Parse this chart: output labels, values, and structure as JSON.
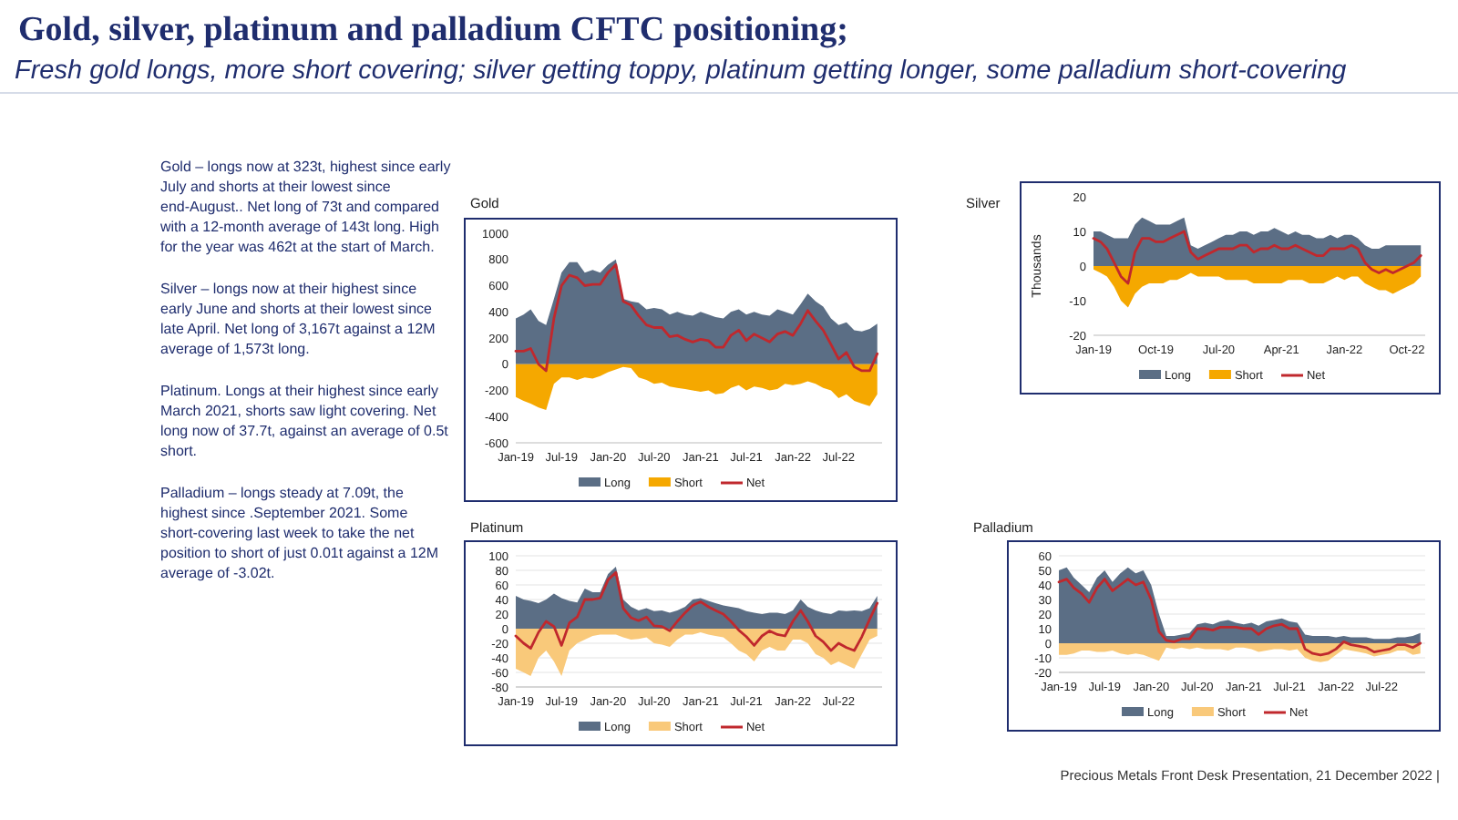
{
  "chart_data": [
    {
      "type": "other",
      "title": "Gold, silver, platinum and palladium CFTC positioning;",
      "subtitle": "Fresh gold longs, more short covering; silver getting toppy, platinum getting longer, some  palladium short-covering",
      "annotations": [
        "Gold – longs now at 323t, highest since early July and shorts at their lowest since end-August..  Net long of 73t and compared with a 12-month average of 143t long. High for the year was 462t at the start of March.",
        "Silver – longs now at their highest since early June and shorts at their lowest since late April. Net long of 3,167t against a 12M average of 1,573t long.",
        "Platinum. Longs at their highest since early March 2021, shorts saw light covering.  Net long now of 37.7t, against an average of 0.5t short.",
        "Palladium – longs steady at 7.09t, the highest since .September 2021. Some short-covering last week to take the net position to short of just 0.01t against a 12M average of -3.02t.",
        "Precious Metals Front Desk Presentation, 21 December 2022 |"
      ]
    },
    {
      "type": "area",
      "title": "Gold",
      "legend": "bottom",
      "ylim": [
        -600,
        1000
      ],
      "yticks": [
        -600,
        -400,
        -200,
        0,
        200,
        400,
        600,
        800,
        1000
      ],
      "xlim": [
        "2019-01-01",
        "2022-12-20"
      ],
      "xticks": [
        {
          "value": "2019-01-01",
          "label": "Jan-19"
        },
        {
          "value": "2019-07-01",
          "label": "Jul-19"
        },
        {
          "value": "2020-01-01",
          "label": "Jan-20"
        },
        {
          "value": "2020-07-01",
          "label": "Jul-20"
        },
        {
          "value": "2021-01-01",
          "label": "Jan-21"
        },
        {
          "value": "2021-07-01",
          "label": "Jul-21"
        },
        {
          "value": "2022-01-01",
          "label": "Jan-22"
        },
        {
          "value": "2022-07-01",
          "label": "Jul-22"
        }
      ],
      "x": [
        "2019-01",
        "2019-02",
        "2019-03",
        "2019-04",
        "2019-05",
        "2019-06",
        "2019-07",
        "2019-08",
        "2019-09",
        "2019-10",
        "2019-11",
        "2019-12",
        "2020-01",
        "2020-02",
        "2020-03",
        "2020-04",
        "2020-05",
        "2020-06",
        "2020-07",
        "2020-08",
        "2020-09",
        "2020-10",
        "2020-11",
        "2020-12",
        "2021-01",
        "2021-02",
        "2021-03",
        "2021-04",
        "2021-05",
        "2021-06",
        "2021-07",
        "2021-08",
        "2021-09",
        "2021-10",
        "2021-11",
        "2021-12",
        "2022-01",
        "2022-02",
        "2022-03",
        "2022-04",
        "2022-05",
        "2022-06",
        "2022-07",
        "2022-08",
        "2022-09",
        "2022-10",
        "2022-11",
        "2022-12"
      ],
      "series": [
        {
          "name": "Long",
          "type": "area",
          "color": "#5b6e85",
          "values": [
            350,
            380,
            420,
            330,
            300,
            500,
            700,
            780,
            780,
            700,
            720,
            700,
            760,
            800,
            500,
            480,
            470,
            420,
            430,
            420,
            380,
            400,
            380,
            370,
            400,
            380,
            360,
            350,
            400,
            420,
            380,
            400,
            380,
            370,
            420,
            400,
            380,
            460,
            540,
            480,
            440,
            350,
            300,
            320,
            260,
            250,
            270,
            310
          ]
        },
        {
          "name": "Short",
          "type": "area",
          "color": "#f5a800",
          "values": [
            -250,
            -280,
            -300,
            -330,
            -350,
            -150,
            -100,
            -100,
            -120,
            -100,
            -110,
            -90,
            -60,
            -40,
            -20,
            -30,
            -100,
            -120,
            -150,
            -140,
            -170,
            -180,
            -190,
            -200,
            -210,
            -200,
            -230,
            -220,
            -180,
            -160,
            -200,
            -170,
            -180,
            -200,
            -190,
            -150,
            -160,
            -150,
            -130,
            -150,
            -180,
            -200,
            -260,
            -230,
            -280,
            -300,
            -320,
            -230
          ]
        },
        {
          "name": "Net",
          "type": "line",
          "color": "#c0282d",
          "values": [
            100,
            100,
            120,
            0,
            -50,
            350,
            600,
            680,
            660,
            600,
            610,
            610,
            700,
            760,
            480,
            450,
            370,
            300,
            280,
            280,
            210,
            220,
            190,
            170,
            190,
            180,
            130,
            130,
            220,
            260,
            180,
            230,
            200,
            170,
            230,
            250,
            220,
            310,
            410,
            330,
            260,
            150,
            40,
            90,
            -20,
            -50,
            -50,
            80
          ]
        }
      ]
    },
    {
      "type": "area",
      "title": "Silver",
      "ylabel": "Thousands",
      "legend": "bottom",
      "ylim": [
        -20,
        20
      ],
      "yticks": [
        -20,
        -10,
        0,
        10,
        20
      ],
      "xlim": [
        "2019-01-01",
        "2022-12-20"
      ],
      "xticks": [
        {
          "value": "2019-01-01",
          "label": "Jan-19"
        },
        {
          "value": "2019-10-01",
          "label": "Oct-19"
        },
        {
          "value": "2020-07-01",
          "label": "Jul-20"
        },
        {
          "value": "2021-04-01",
          "label": "Apr-21"
        },
        {
          "value": "2022-01-01",
          "label": "Jan-22"
        },
        {
          "value": "2022-10-01",
          "label": "Oct-22"
        }
      ],
      "x": [
        "2019-01",
        "2019-02",
        "2019-03",
        "2019-04",
        "2019-05",
        "2019-06",
        "2019-07",
        "2019-08",
        "2019-09",
        "2019-10",
        "2019-11",
        "2019-12",
        "2020-01",
        "2020-02",
        "2020-03",
        "2020-04",
        "2020-05",
        "2020-06",
        "2020-07",
        "2020-08",
        "2020-09",
        "2020-10",
        "2020-11",
        "2020-12",
        "2021-01",
        "2021-02",
        "2021-03",
        "2021-04",
        "2021-05",
        "2021-06",
        "2021-07",
        "2021-08",
        "2021-09",
        "2021-10",
        "2021-11",
        "2021-12",
        "2022-01",
        "2022-02",
        "2022-03",
        "2022-04",
        "2022-05",
        "2022-06",
        "2022-07",
        "2022-08",
        "2022-09",
        "2022-10",
        "2022-11",
        "2022-12"
      ],
      "series": [
        {
          "name": "Long",
          "type": "area",
          "color": "#5b6e85",
          "values": [
            10,
            10,
            9,
            8,
            8,
            8,
            12,
            14,
            13,
            12,
            12,
            12,
            13,
            14,
            6,
            5,
            6,
            7,
            8,
            9,
            9,
            10,
            10,
            9,
            10,
            10,
            11,
            10,
            9,
            10,
            9,
            9,
            8,
            8,
            9,
            8,
            9,
            9,
            8,
            6,
            5,
            5,
            6,
            6,
            6,
            6,
            6,
            6
          ]
        },
        {
          "name": "Short",
          "type": "area",
          "color": "#f5a800",
          "values": [
            -1,
            -2,
            -3,
            -6,
            -10,
            -12,
            -8,
            -6,
            -5,
            -5,
            -5,
            -4,
            -4,
            -3,
            -2,
            -3,
            -3,
            -3,
            -3,
            -4,
            -4,
            -4,
            -4,
            -5,
            -5,
            -5,
            -5,
            -5,
            -4,
            -4,
            -4,
            -5,
            -5,
            -5,
            -4,
            -3,
            -4,
            -3,
            -3,
            -5,
            -6,
            -7,
            -7,
            -8,
            -7,
            -6,
            -5,
            -3
          ]
        },
        {
          "name": "Net",
          "type": "line",
          "color": "#c0282d",
          "values": [
            8,
            7,
            5,
            1,
            -3,
            -5,
            4,
            8,
            8,
            7,
            7,
            8,
            9,
            10,
            4,
            2,
            3,
            4,
            5,
            5,
            5,
            6,
            6,
            4,
            5,
            5,
            6,
            5,
            5,
            6,
            5,
            4,
            3,
            3,
            5,
            5,
            5,
            6,
            5,
            1,
            -1,
            -2,
            -1,
            -2,
            -1,
            0,
            1,
            3
          ]
        }
      ]
    },
    {
      "type": "area",
      "title": "Platinum",
      "legend": "bottom",
      "grid": "y",
      "ylim": [
        -80,
        100
      ],
      "yticks": [
        -80,
        -60,
        -40,
        -20,
        0,
        20,
        40,
        60,
        80,
        100
      ],
      "xlim": [
        "2019-01-01",
        "2022-12-20"
      ],
      "xticks": [
        {
          "value": "2019-01-01",
          "label": "Jan-19"
        },
        {
          "value": "2019-07-01",
          "label": "Jul-19"
        },
        {
          "value": "2020-01-01",
          "label": "Jan-20"
        },
        {
          "value": "2020-07-01",
          "label": "Jul-20"
        },
        {
          "value": "2021-01-01",
          "label": "Jan-21"
        },
        {
          "value": "2021-07-01",
          "label": "Jul-21"
        },
        {
          "value": "2022-01-01",
          "label": "Jan-22"
        },
        {
          "value": "2022-07-01",
          "label": "Jul-22"
        }
      ],
      "x": [
        "2019-01",
        "2019-02",
        "2019-03",
        "2019-04",
        "2019-05",
        "2019-06",
        "2019-07",
        "2019-08",
        "2019-09",
        "2019-10",
        "2019-11",
        "2019-12",
        "2020-01",
        "2020-02",
        "2020-03",
        "2020-04",
        "2020-05",
        "2020-06",
        "2020-07",
        "2020-08",
        "2020-09",
        "2020-10",
        "2020-11",
        "2020-12",
        "2021-01",
        "2021-02",
        "2021-03",
        "2021-04",
        "2021-05",
        "2021-06",
        "2021-07",
        "2021-08",
        "2021-09",
        "2021-10",
        "2021-11",
        "2021-12",
        "2022-01",
        "2022-02",
        "2022-03",
        "2022-04",
        "2022-05",
        "2022-06",
        "2022-07",
        "2022-08",
        "2022-09",
        "2022-10",
        "2022-11",
        "2022-12"
      ],
      "series": [
        {
          "name": "Long",
          "type": "area",
          "color": "#5b6e85",
          "values": [
            45,
            40,
            38,
            35,
            40,
            48,
            42,
            38,
            36,
            55,
            50,
            50,
            75,
            85,
            40,
            30,
            25,
            28,
            24,
            25,
            22,
            25,
            30,
            40,
            42,
            38,
            35,
            32,
            30,
            28,
            24,
            22,
            20,
            22,
            22,
            20,
            25,
            40,
            30,
            25,
            22,
            20,
            25,
            24,
            25,
            24,
            28,
            45
          ]
        },
        {
          "name": "Short",
          "type": "area",
          "color": "#f9c97a",
          "values": [
            -55,
            -60,
            -65,
            -40,
            -30,
            -45,
            -65,
            -30,
            -20,
            -15,
            -10,
            -8,
            -8,
            -8,
            -12,
            -15,
            -14,
            -12,
            -20,
            -22,
            -25,
            -15,
            -8,
            -8,
            -5,
            -8,
            -10,
            -12,
            -20,
            -30,
            -35,
            -45,
            -30,
            -25,
            -30,
            -30,
            -15,
            -15,
            -20,
            -35,
            -40,
            -50,
            -45,
            -50,
            -55,
            -35,
            -15,
            -10
          ]
        },
        {
          "name": "Net",
          "type": "line",
          "color": "#c0282d",
          "values": [
            -10,
            -20,
            -27,
            -5,
            10,
            3,
            -23,
            8,
            16,
            40,
            40,
            42,
            67,
            77,
            28,
            15,
            11,
            16,
            4,
            3,
            -3,
            10,
            22,
            32,
            37,
            30,
            25,
            20,
            10,
            -2,
            -11,
            -23,
            -10,
            -3,
            -8,
            -10,
            10,
            25,
            10,
            -10,
            -18,
            -30,
            -20,
            -26,
            -30,
            -11,
            13,
            35
          ]
        }
      ]
    },
    {
      "type": "area",
      "title": "Palladium",
      "legend": "bottom",
      "grid": "y",
      "ylim": [
        -20,
        60
      ],
      "yticks": [
        -20,
        -10,
        0,
        10,
        20,
        30,
        40,
        50,
        60
      ],
      "xlim": [
        "2019-01-01",
        "2022-12-20"
      ],
      "xticks": [
        {
          "value": "2019-01-01",
          "label": "Jan-19"
        },
        {
          "value": "2019-07-01",
          "label": "Jul-19"
        },
        {
          "value": "2020-01-01",
          "label": "Jan-20"
        },
        {
          "value": "2020-07-01",
          "label": "Jul-20"
        },
        {
          "value": "2021-01-01",
          "label": "Jan-21"
        },
        {
          "value": "2021-07-01",
          "label": "Jul-21"
        },
        {
          "value": "2022-01-01",
          "label": "Jan-22"
        },
        {
          "value": "2022-07-01",
          "label": "Jul-22"
        }
      ],
      "x": [
        "2019-01",
        "2019-02",
        "2019-03",
        "2019-04",
        "2019-05",
        "2019-06",
        "2019-07",
        "2019-08",
        "2019-09",
        "2019-10",
        "2019-11",
        "2019-12",
        "2020-01",
        "2020-02",
        "2020-03",
        "2020-04",
        "2020-05",
        "2020-06",
        "2020-07",
        "2020-08",
        "2020-09",
        "2020-10",
        "2020-11",
        "2020-12",
        "2021-01",
        "2021-02",
        "2021-03",
        "2021-04",
        "2021-05",
        "2021-06",
        "2021-07",
        "2021-08",
        "2021-09",
        "2021-10",
        "2021-11",
        "2021-12",
        "2022-01",
        "2022-02",
        "2022-03",
        "2022-04",
        "2022-05",
        "2022-06",
        "2022-07",
        "2022-08",
        "2022-09",
        "2022-10",
        "2022-11",
        "2022-12"
      ],
      "series": [
        {
          "name": "Long",
          "type": "area",
          "color": "#5b6e85",
          "values": [
            50,
            52,
            45,
            40,
            35,
            45,
            50,
            42,
            48,
            52,
            48,
            50,
            40,
            20,
            5,
            5,
            6,
            7,
            13,
            14,
            13,
            15,
            16,
            14,
            13,
            14,
            12,
            15,
            16,
            17,
            15,
            14,
            6,
            5,
            5,
            5,
            4,
            5,
            4,
            4,
            4,
            3,
            3,
            3,
            4,
            4,
            5,
            7
          ]
        },
        {
          "name": "Short",
          "type": "area",
          "color": "#f9c97a",
          "values": [
            -8,
            -8,
            -7,
            -5,
            -5,
            -6,
            -6,
            -5,
            -7,
            -8,
            -7,
            -8,
            -10,
            -12,
            -3,
            -4,
            -3,
            -4,
            -3,
            -4,
            -4,
            -4,
            -5,
            -3,
            -3,
            -4,
            -6,
            -5,
            -4,
            -4,
            -5,
            -4,
            -10,
            -12,
            -13,
            -12,
            -8,
            -4,
            -5,
            -6,
            -7,
            -9,
            -8,
            -7,
            -5,
            -5,
            -8,
            -7
          ]
        },
        {
          "name": "Net",
          "type": "line",
          "color": "#c0282d",
          "values": [
            42,
            44,
            38,
            34,
            28,
            38,
            44,
            36,
            40,
            44,
            40,
            42,
            30,
            8,
            2,
            1,
            3,
            3,
            10,
            10,
            9,
            11,
            11,
            11,
            10,
            10,
            6,
            10,
            12,
            13,
            10,
            10,
            -4,
            -7,
            -8,
            -7,
            -4,
            1,
            -1,
            -2,
            -3,
            -6,
            -5,
            -4,
            -1,
            -1,
            -3,
            0
          ]
        }
      ]
    }
  ]
}
